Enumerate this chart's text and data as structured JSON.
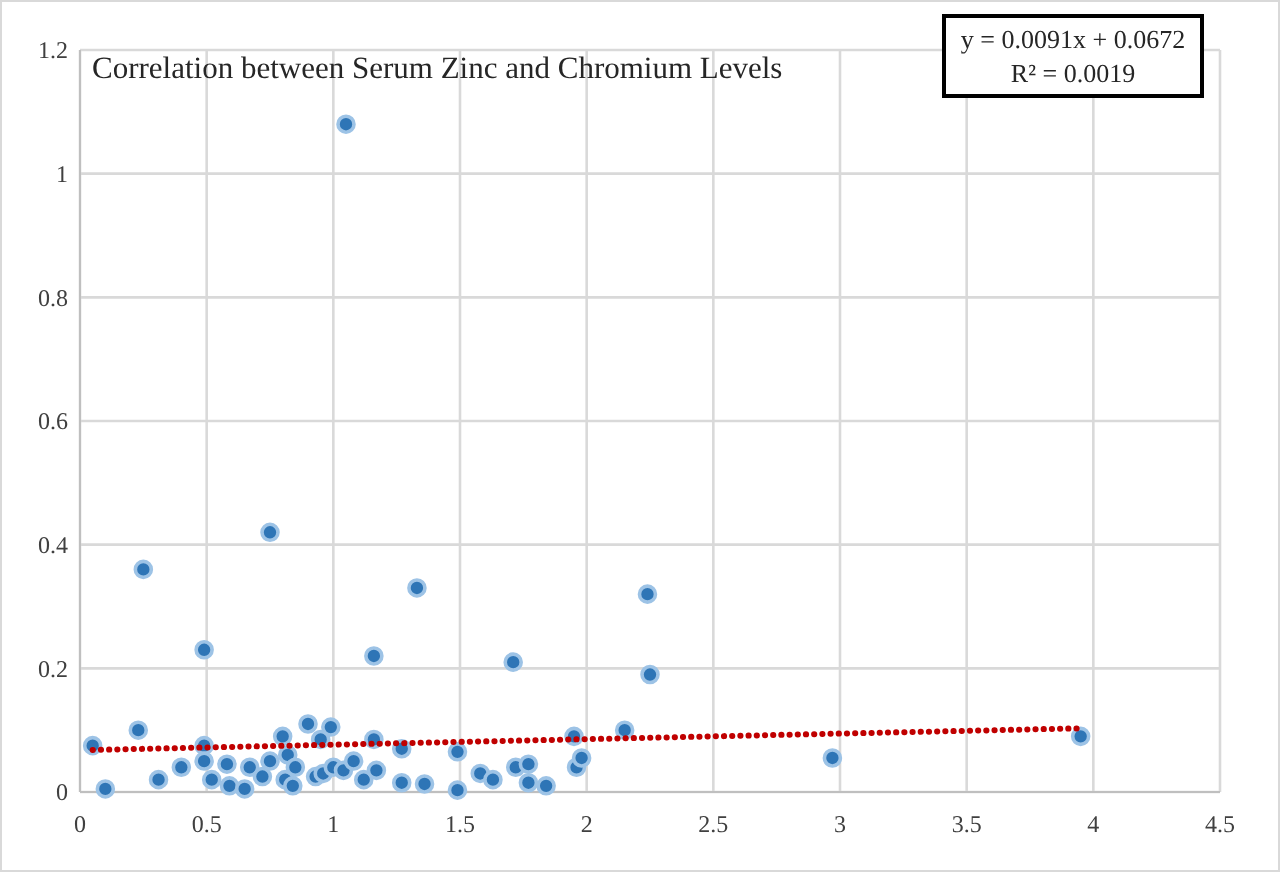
{
  "chart_data": {
    "type": "scatter",
    "title": "Correlation between Serum Zinc and Chromium Levels",
    "annotations": [
      "y = 0.0091x + 0.0672",
      "R² = 0.0019"
    ],
    "xlim": [
      0,
      4.5
    ],
    "xticks": [
      0,
      0.5,
      1,
      1.5,
      2,
      2.5,
      3,
      3.5,
      4,
      4.5
    ],
    "ylim": [
      0,
      1.2
    ],
    "yticks": [
      0,
      0.2,
      0.4,
      0.6,
      0.8,
      1,
      1.2
    ],
    "grid": true,
    "marker": "circle",
    "series": [
      {
        "color": "#2e75b6",
        "x": [
          1.05,
          0.75,
          0.25,
          1.33,
          2.24,
          0.49,
          1.16,
          1.71,
          2.25,
          2.97,
          3.95,
          0.05,
          0.1,
          0.23,
          0.31,
          0.4,
          0.49,
          0.49,
          0.52,
          0.58,
          0.59,
          0.65,
          0.67,
          0.72,
          0.75,
          0.8,
          0.82,
          0.81,
          0.84,
          0.85,
          0.9,
          0.95,
          0.93,
          0.96,
          0.99,
          1.0,
          1.04,
          1.08,
          1.12,
          1.16,
          1.17,
          1.27,
          1.27,
          1.36,
          1.49,
          1.49,
          1.58,
          1.63,
          1.72,
          1.77,
          1.77,
          1.84,
          1.95,
          1.96,
          1.98,
          2.15
        ],
        "values": [
          1.08,
          0.42,
          0.36,
          0.33,
          0.32,
          0.23,
          0.22,
          0.21,
          0.19,
          0.055,
          0.09,
          0.075,
          0.005,
          0.1,
          0.02,
          0.04,
          0.075,
          0.05,
          0.02,
          0.045,
          0.01,
          0.005,
          0.04,
          0.025,
          0.05,
          0.09,
          0.06,
          0.02,
          0.01,
          0.04,
          0.11,
          0.085,
          0.025,
          0.03,
          0.105,
          0.04,
          0.035,
          0.05,
          0.02,
          0.085,
          0.035,
          0.015,
          0.07,
          0.013,
          0.065,
          0.003,
          0.03,
          0.02,
          0.04,
          0.045,
          0.015,
          0.01,
          0.09,
          0.04,
          0.055,
          0.1
        ]
      },
      {
        "type": "line",
        "color": "#c00000",
        "line_style": "dotted",
        "marker": "none",
        "x": [
          0.05,
          3.95
        ],
        "values": [
          0.068,
          0.103
        ]
      }
    ]
  }
}
